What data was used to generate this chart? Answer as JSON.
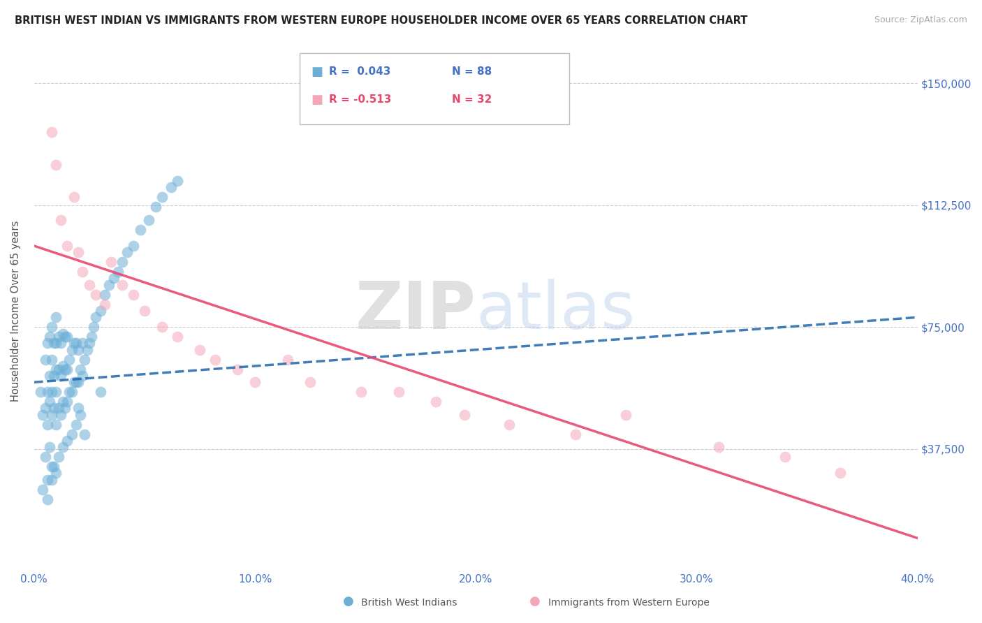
{
  "title": "BRITISH WEST INDIAN VS IMMIGRANTS FROM WESTERN EUROPE HOUSEHOLDER INCOME OVER 65 YEARS CORRELATION CHART",
  "source": "Source: ZipAtlas.com",
  "ylabel": "Householder Income Over 65 years",
  "xmin": 0.0,
  "xmax": 0.4,
  "ymin": 0,
  "ymax": 160000,
  "yticks": [
    0,
    37500,
    75000,
    112500,
    150000
  ],
  "ytick_labels": [
    "",
    "$37,500",
    "$75,000",
    "$112,500",
    "$150,000"
  ],
  "xticks": [
    0.0,
    0.1,
    0.2,
    0.3,
    0.4
  ],
  "xtick_labels": [
    "0.0%",
    "10.0%",
    "20.0%",
    "30.0%",
    "40.0%"
  ],
  "legend1_label": "R =  0.043   N = 88",
  "legend2_label": "R = -0.513   N = 32",
  "legend1_color": "#6baed6",
  "legend2_color": "#f4a6b8",
  "series1_color": "#6baed6",
  "series2_color": "#f4a6b8",
  "trendline1_color": "#2166ac",
  "trendline2_color": "#e8486e",
  "watermark_zip": "ZIP",
  "watermark_atlas": "atlas",
  "background_color": "#ffffff",
  "grid_color": "#cccccc",
  "tick_label_color": "#4472c4",
  "legend_text_color1": "#4472c4",
  "legend_text_color2": "#e8486e",
  "series1_x": [
    0.003,
    0.004,
    0.005,
    0.005,
    0.006,
    0.006,
    0.006,
    0.007,
    0.007,
    0.007,
    0.008,
    0.008,
    0.008,
    0.008,
    0.009,
    0.009,
    0.009,
    0.01,
    0.01,
    0.01,
    0.01,
    0.01,
    0.011,
    0.011,
    0.011,
    0.012,
    0.012,
    0.012,
    0.013,
    0.013,
    0.013,
    0.014,
    0.014,
    0.014,
    0.015,
    0.015,
    0.015,
    0.016,
    0.016,
    0.017,
    0.017,
    0.018,
    0.018,
    0.019,
    0.019,
    0.02,
    0.02,
    0.021,
    0.022,
    0.022,
    0.023,
    0.024,
    0.025,
    0.026,
    0.027,
    0.028,
    0.03,
    0.032,
    0.034,
    0.036,
    0.038,
    0.04,
    0.042,
    0.045,
    0.048,
    0.052,
    0.055,
    0.058,
    0.062,
    0.065,
    0.01,
    0.008,
    0.006,
    0.005,
    0.007,
    0.009,
    0.011,
    0.013,
    0.015,
    0.017,
    0.019,
    0.021,
    0.023,
    0.03,
    0.02,
    0.004,
    0.006,
    0.008
  ],
  "series1_y": [
    55000,
    48000,
    50000,
    65000,
    45000,
    55000,
    70000,
    52000,
    60000,
    72000,
    48000,
    55000,
    65000,
    75000,
    50000,
    60000,
    70000,
    45000,
    55000,
    62000,
    70000,
    78000,
    50000,
    62000,
    72000,
    48000,
    60000,
    70000,
    52000,
    63000,
    73000,
    50000,
    62000,
    72000,
    52000,
    62000,
    72000,
    55000,
    65000,
    55000,
    68000,
    58000,
    70000,
    58000,
    70000,
    58000,
    68000,
    62000,
    60000,
    70000,
    65000,
    68000,
    70000,
    72000,
    75000,
    78000,
    80000,
    85000,
    88000,
    90000,
    92000,
    95000,
    98000,
    100000,
    105000,
    108000,
    112000,
    115000,
    118000,
    120000,
    30000,
    32000,
    28000,
    35000,
    38000,
    32000,
    35000,
    38000,
    40000,
    42000,
    45000,
    48000,
    42000,
    55000,
    50000,
    25000,
    22000,
    28000
  ],
  "series2_x": [
    0.008,
    0.01,
    0.012,
    0.015,
    0.018,
    0.02,
    0.022,
    0.025,
    0.028,
    0.032,
    0.035,
    0.04,
    0.045,
    0.05,
    0.058,
    0.065,
    0.075,
    0.082,
    0.092,
    0.1,
    0.115,
    0.125,
    0.148,
    0.165,
    0.182,
    0.195,
    0.215,
    0.245,
    0.268,
    0.31,
    0.34,
    0.365
  ],
  "series2_y": [
    135000,
    125000,
    108000,
    100000,
    115000,
    98000,
    92000,
    88000,
    85000,
    82000,
    95000,
    88000,
    85000,
    80000,
    75000,
    72000,
    68000,
    65000,
    62000,
    58000,
    65000,
    58000,
    55000,
    55000,
    52000,
    48000,
    45000,
    42000,
    48000,
    38000,
    35000,
    30000
  ],
  "trendline1_x": [
    0.0,
    0.4
  ],
  "trendline1_y": [
    58000,
    78000
  ],
  "trendline2_x": [
    0.0,
    0.4
  ],
  "trendline2_y": [
    100000,
    10000
  ]
}
